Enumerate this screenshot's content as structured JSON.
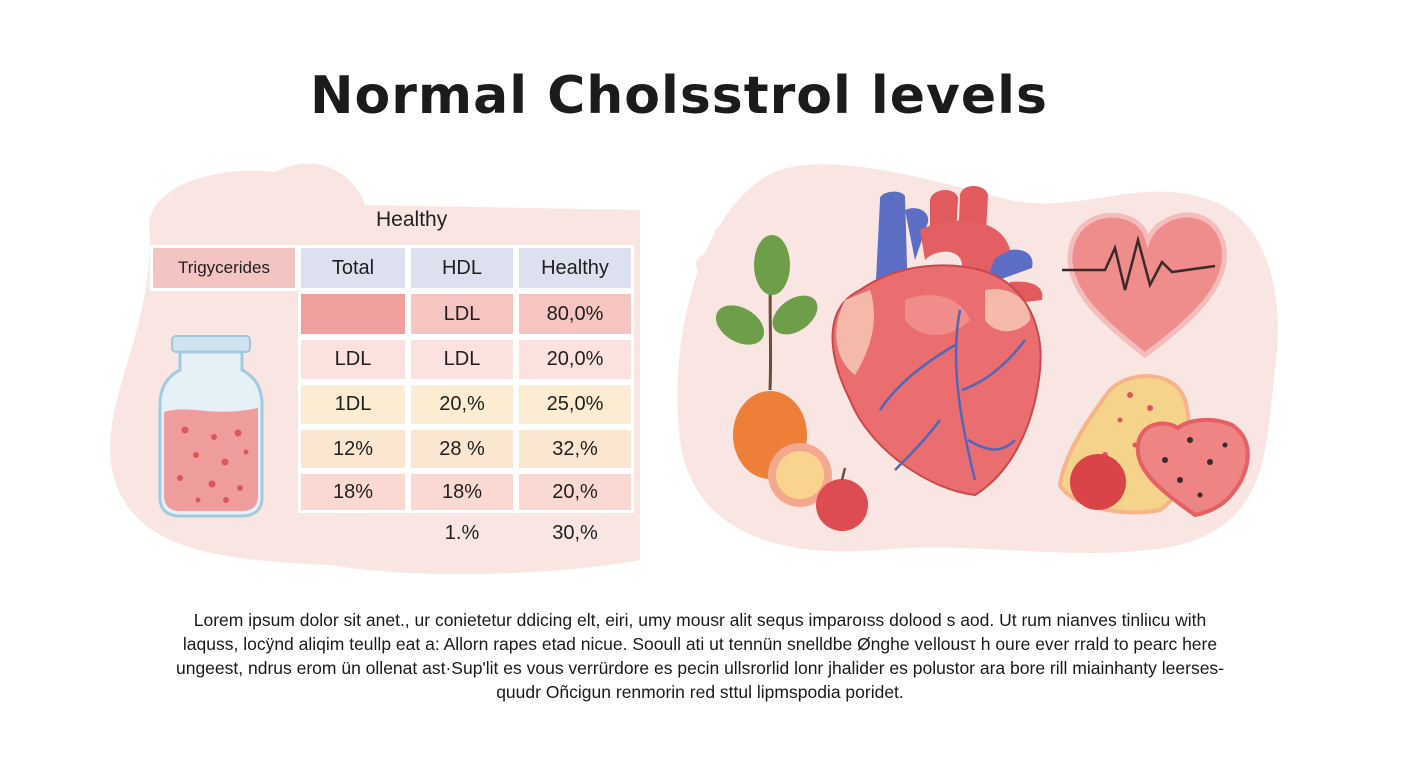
{
  "title": "Normal Cholsstrol levels",
  "table": {
    "heading": "Healthy",
    "left_label": "Trigycerides",
    "headers": [
      "Total",
      "HDL",
      "Healthy"
    ],
    "rows": [
      [
        "",
        "LDL",
        "80,0%"
      ],
      [
        "LDL",
        "LDL",
        "20,0%"
      ],
      [
        "1DL",
        "20,%",
        "25,0%"
      ],
      [
        "12%",
        "28 %",
        "32,%"
      ],
      [
        "18%",
        "18%",
        "20,%"
      ],
      [
        "",
        "1.%",
        "30,%"
      ]
    ]
  },
  "body_text": [
    "Lorem ipsum dolor sit anet., ur conietetur ddicing elt, eiri, umy mousr alit sequs imparoıss dolood s aod. Ut rum nianves tinliιcu with",
    "laquss, locÿnd aliqim teullp eat a:  Allorn rapes etad nicue. Sooull ati ut tennün snelldbe Ønghe vellousτ h oure ever rrald  to pearc here",
    "ungeest, ndrus erom ün ollenat ast·Sup'lit es vous verrürdore es pecin ullsrorlid lonr jhalider es polustor ara bore rill miainhanty leerses-",
    "quudr  Oñcigun renmorin red sttul lipmspodia poridet."
  ],
  "colors": {
    "blob": "#f9e6e2",
    "header_blue": "#dde0ef",
    "row_red": "#f2aaa8",
    "row_pink": "#f9dedc",
    "row_yellow": "#fcecd2",
    "row_yellow2": "#fbe7d1",
    "row_pink2": "#fad9d3"
  },
  "icons": [
    "jar-icon",
    "heart-anatomy-icon",
    "heartbeat-heart-icon",
    "plant-icon",
    "apple-icon",
    "fruit-slice-icon"
  ]
}
